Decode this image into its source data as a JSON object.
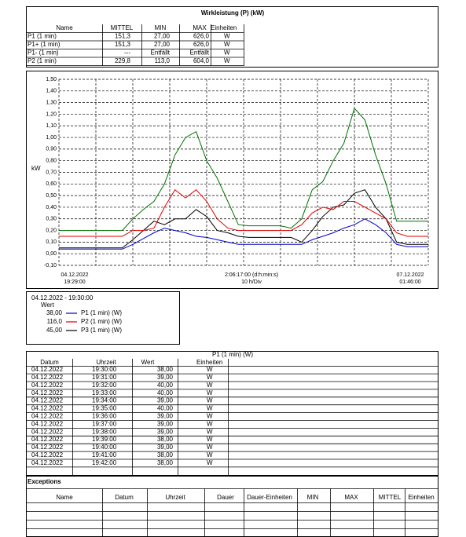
{
  "summary": {
    "title": "Wirkleistung (P) (kW)",
    "columns": [
      "Name",
      "MITTEL",
      "MIN",
      "MAX",
      "Einheiten"
    ],
    "rows": [
      [
        "P1 (1 min)",
        "151,3",
        "27,00",
        "626,0",
        "W"
      ],
      [
        "P1+ (1 min)",
        "151,3",
        "27,00",
        "626,0",
        "W"
      ],
      [
        "P1- (1 min)",
        "---",
        "Entfällt",
        "Entfällt",
        "W"
      ],
      [
        "P2 (1 min)",
        "229,8",
        "113,0",
        "604,0",
        "W"
      ]
    ]
  },
  "chart_data": {
    "type": "line",
    "y_label": "kW",
    "ylim": [
      -0.1,
      1.5
    ],
    "yticks": [
      {
        "value": -0.1,
        "label": "-0,10"
      },
      {
        "value": 0,
        "label": "0,00"
      },
      {
        "value": 0.1,
        "label": "0,10"
      },
      {
        "value": 0.2,
        "label": "0,20"
      },
      {
        "value": 0.3,
        "label": "0,30"
      },
      {
        "value": 0.4,
        "label": "0,40"
      },
      {
        "value": 0.5,
        "label": "0,50"
      },
      {
        "value": 0.6,
        "label": "0,60"
      },
      {
        "value": 0.7,
        "label": "0,70"
      },
      {
        "value": 0.8,
        "label": "0,80"
      },
      {
        "value": 0.9,
        "label": "0,90"
      },
      {
        "value": 1.0,
        "label": "1,00"
      },
      {
        "value": 1.1,
        "label": "1,10"
      },
      {
        "value": 1.2,
        "label": "1,20"
      },
      {
        "value": 1.3,
        "label": "1,30"
      },
      {
        "value": 1.4,
        "label": "1,40"
      },
      {
        "value": 1.5,
        "label": "1,50"
      }
    ],
    "grid": true,
    "x_labels": [
      [
        "04.12.2022",
        "19:29:00"
      ],
      [
        "2:06:17:00 (d:h:min:s)",
        "10 h/Div"
      ],
      [
        "07.12.2022",
        "01:46:00"
      ]
    ],
    "series": [
      {
        "name": "P1 (1 min) (W)",
        "color": "#0000cc",
        "values": [
          0.04,
          0.04,
          0.04,
          0.04,
          0.04,
          0.04,
          0.04,
          0.08,
          0.13,
          0.18,
          0.22,
          0.2,
          0.18,
          0.15,
          0.14,
          0.12,
          0.1,
          0.08,
          0.08,
          0.08,
          0.08,
          0.08,
          0.08,
          0.08,
          0.12,
          0.15,
          0.18,
          0.22,
          0.25,
          0.3,
          0.25,
          0.18,
          0.08,
          0.06,
          0.06,
          0.06
        ]
      },
      {
        "name": "P2 (1 min) (W)",
        "color": "#e00000",
        "values": [
          0.15,
          0.15,
          0.15,
          0.15,
          0.15,
          0.15,
          0.15,
          0.2,
          0.2,
          0.22,
          0.4,
          0.55,
          0.48,
          0.55,
          0.45,
          0.3,
          0.22,
          0.2,
          0.2,
          0.2,
          0.2,
          0.2,
          0.2,
          0.25,
          0.35,
          0.4,
          0.38,
          0.45,
          0.45,
          0.4,
          0.35,
          0.3,
          0.18,
          0.15,
          0.15,
          0.15
        ]
      },
      {
        "name": "P3 (1 min) (W)",
        "color": "#000000",
        "values": [
          0.05,
          0.05,
          0.05,
          0.05,
          0.05,
          0.05,
          0.05,
          0.12,
          0.2,
          0.28,
          0.25,
          0.3,
          0.3,
          0.38,
          0.32,
          0.2,
          0.18,
          0.15,
          0.14,
          0.14,
          0.14,
          0.14,
          0.14,
          0.1,
          0.2,
          0.32,
          0.4,
          0.42,
          0.52,
          0.55,
          0.4,
          0.3,
          0.1,
          0.08,
          0.08,
          0.08
        ]
      },
      {
        "color": "#007000",
        "values": [
          0.2,
          0.2,
          0.2,
          0.2,
          0.2,
          0.2,
          0.2,
          0.3,
          0.38,
          0.45,
          0.6,
          0.85,
          1.0,
          1.05,
          0.8,
          0.65,
          0.45,
          0.25,
          0.24,
          0.24,
          0.24,
          0.24,
          0.22,
          0.3,
          0.55,
          0.62,
          0.8,
          0.95,
          1.25,
          1.15,
          0.85,
          0.6,
          0.28,
          0.28,
          0.28,
          0.28
        ]
      }
    ],
    "cursor": {
      "label": "04.12.2022 - 19:30:00",
      "header": "Wert",
      "values": [
        "38,00",
        "116,0",
        "45,00"
      ]
    }
  },
  "readings": {
    "title": "P1 (1 min) (W)",
    "columns": [
      "Datum",
      "Uhrzeit",
      "Wert",
      "Einheiten"
    ],
    "rows": [
      [
        "04.12.2022",
        "19:30:00",
        "38,00",
        "W"
      ],
      [
        "04.12.2022",
        "19:31:00",
        "39,00",
        "W"
      ],
      [
        "04.12.2022",
        "19:32:00",
        "40,00",
        "W"
      ],
      [
        "04.12.2022",
        "19:33:00",
        "40,00",
        "W"
      ],
      [
        "04.12.2022",
        "19:34:00",
        "39,00",
        "W"
      ],
      [
        "04.12.2022",
        "19:35:00",
        "40,00",
        "W"
      ],
      [
        "04.12.2022",
        "19:36:00",
        "39,00",
        "W"
      ],
      [
        "04.12.2022",
        "19:37:00",
        "39,00",
        "W"
      ],
      [
        "04.12.2022",
        "19:38:00",
        "39,00",
        "W"
      ],
      [
        "04.12.2022",
        "19:39:00",
        "38,00",
        "W"
      ],
      [
        "04.12.2022",
        "19:40:00",
        "39,00",
        "W"
      ],
      [
        "04.12.2022",
        "19:41:00",
        "38,00",
        "W"
      ],
      [
        "04.12.2022",
        "19:42:00",
        "38,00",
        "W"
      ]
    ]
  },
  "exceptions": {
    "title": "Exceptions",
    "columns": [
      "Name",
      "Datum",
      "Uhrzeit",
      "Dauer",
      "Dauer-Einheiten",
      "MIN",
      "MAX",
      "MITTEL",
      "Einheiten"
    ]
  }
}
